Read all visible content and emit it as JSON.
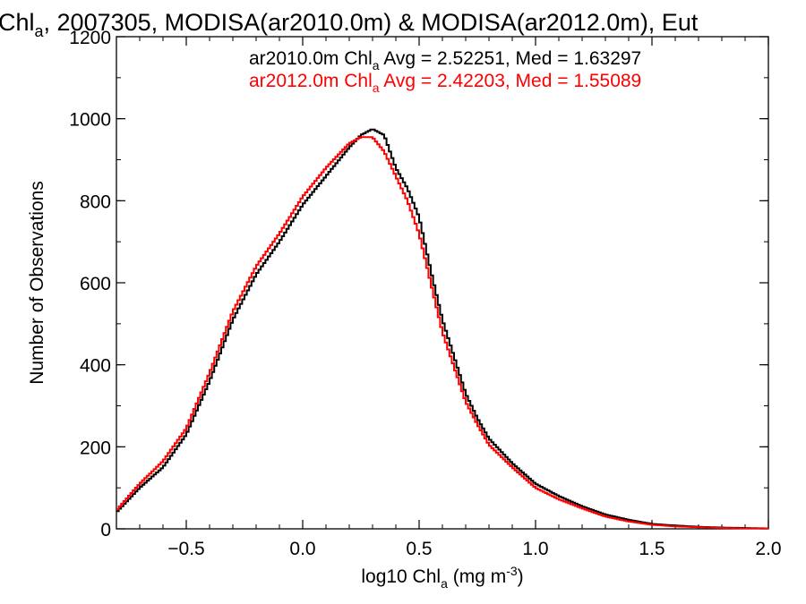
{
  "chart_data": {
    "type": "line",
    "title": {
      "pre": "Chl",
      "sub": "a",
      "post": ", 2007305, MODISA(ar2010.0m) & MODISA(ar2012.0m), Eut"
    },
    "xlabel": {
      "pre": "log10 Chl",
      "sub": "a",
      "mid": " (mg m",
      "sup": "-3",
      "post": ")"
    },
    "ylabel": "Number of Observations",
    "xlim": [
      -0.8,
      2.0
    ],
    "ylim": [
      0,
      1200
    ],
    "xticks": [
      -0.5,
      0.0,
      0.5,
      1.0,
      1.5,
      2.0
    ],
    "xtick_labels": [
      "−0.5",
      "0.0",
      "0.5",
      "1.0",
      "1.5",
      "2.0"
    ],
    "yticks": [
      0,
      200,
      400,
      600,
      800,
      1000,
      1200
    ],
    "ytick_labels": [
      "0",
      "200",
      "400",
      "600",
      "800",
      "1000",
      "1200"
    ],
    "grid": false,
    "step": true,
    "annotations": [
      {
        "pre": "ar2010.0m Chl",
        "sub": "a",
        "post": " Avg = 2.52251, Med = 1.63297",
        "color": "#000000"
      },
      {
        "pre": "ar2012.0m Chl",
        "sub": "a",
        "post": " Avg = 2.42203, Med = 1.55089",
        "color": "#ff0000"
      }
    ],
    "x": [
      -0.8,
      -0.7,
      -0.6,
      -0.5,
      -0.4,
      -0.3,
      -0.2,
      -0.1,
      0.0,
      0.1,
      0.2,
      0.25,
      0.3,
      0.35,
      0.4,
      0.45,
      0.5,
      0.55,
      0.6,
      0.65,
      0.7,
      0.75,
      0.8,
      0.9,
      1.0,
      1.1,
      1.2,
      1.3,
      1.4,
      1.5,
      1.6,
      1.7,
      1.8,
      1.9,
      2.0
    ],
    "series": [
      {
        "color": "#000000",
        "values": [
          40,
          100,
          150,
          230,
          360,
          510,
          620,
          700,
          790,
          860,
          930,
          960,
          975,
          960,
          880,
          830,
          760,
          630,
          510,
          420,
          330,
          270,
          220,
          160,
          110,
          80,
          55,
          35,
          22,
          12,
          8,
          5,
          3,
          2,
          1
        ]
      },
      {
        "color": "#ff0000",
        "values": [
          45,
          110,
          165,
          245,
          380,
          530,
          640,
          720,
          810,
          880,
          940,
          955,
          955,
          920,
          860,
          800,
          720,
          600,
          480,
          395,
          310,
          255,
          205,
          150,
          100,
          72,
          50,
          30,
          18,
          10,
          6,
          4,
          2,
          1,
          1
        ]
      }
    ]
  }
}
